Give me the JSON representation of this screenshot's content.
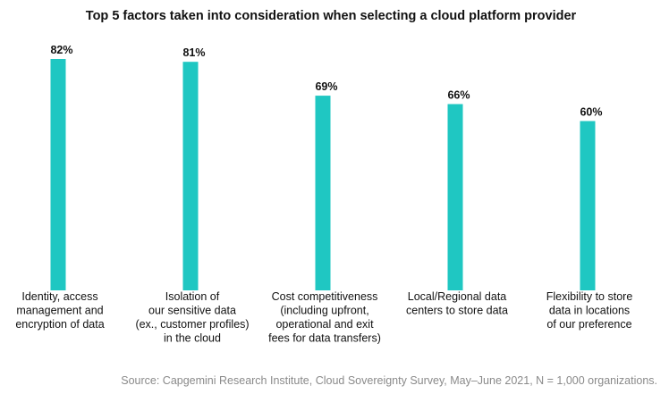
{
  "chart_data": {
    "type": "bar",
    "title": "Top 5 factors taken into consideration when selecting a cloud platform provider",
    "categories": [
      [
        "Identity, access",
        "management and",
        "encryption of data"
      ],
      [
        "Isolation of",
        "our sensitive data",
        "(ex., customer profiles)",
        "in the cloud"
      ],
      [
        "Cost competitiveness",
        "(including upfront,",
        "operational and exit",
        "fees for data transfers)"
      ],
      [
        "Local/Regional data",
        "centers to store data"
      ],
      [
        "Flexibility to store",
        "data in locations",
        "of our preference"
      ]
    ],
    "values": [
      82,
      81,
      69,
      66,
      60
    ],
    "value_labels": [
      "82%",
      "81%",
      "69%",
      "66%",
      "60%"
    ],
    "unit": "%",
    "ylim": [
      0,
      82
    ],
    "grid": false,
    "legend": "none",
    "bar_color": "#1fc7c2",
    "source": "Source: Capgemini Research Institute, Cloud Sovereignty Survey, May–June 2021, N = 1,000 organizations."
  }
}
